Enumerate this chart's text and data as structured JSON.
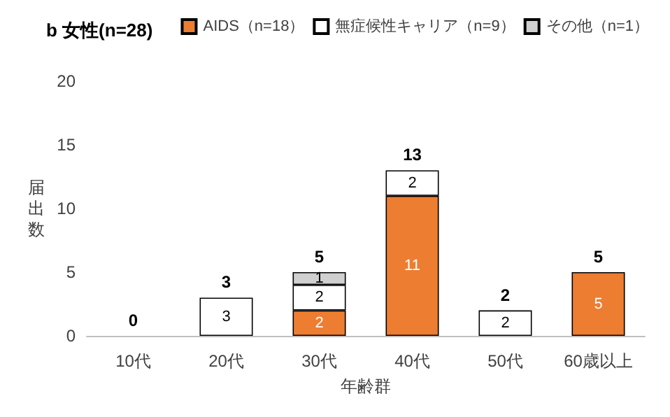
{
  "chart_data": {
    "type": "bar",
    "title": "b 女性(n=28)",
    "xlabel": "年齢群",
    "ylabel": "届出数",
    "categories": [
      "10代",
      "20代",
      "30代",
      "40代",
      "50代",
      "60歳以上"
    ],
    "stacked": true,
    "legend": "top right",
    "grid": false,
    "ylim": [
      0,
      20
    ],
    "yticks": [
      0,
      5,
      10,
      15,
      20
    ],
    "series": [
      {
        "name": "AIDS（n=18）",
        "color": "#ed7d31",
        "values": [
          0,
          0,
          2,
          11,
          0,
          5
        ],
        "value_labels": [
          null,
          null,
          "2",
          "11",
          null,
          "5"
        ]
      },
      {
        "name": "無症候性キャリア（n=9）",
        "color": "#ffffff",
        "values": [
          0,
          3,
          2,
          2,
          2,
          0
        ],
        "value_labels": [
          null,
          "3",
          "2",
          "2",
          "2",
          null
        ]
      },
      {
        "name": "その他（n=1）",
        "color": "#d0d0d0",
        "values": [
          0,
          0,
          1,
          0,
          0,
          0
        ],
        "value_labels": [
          null,
          null,
          "1",
          null,
          null,
          null
        ]
      }
    ],
    "totals": [
      "0",
      "3",
      "5",
      "13",
      "2",
      "5"
    ]
  }
}
